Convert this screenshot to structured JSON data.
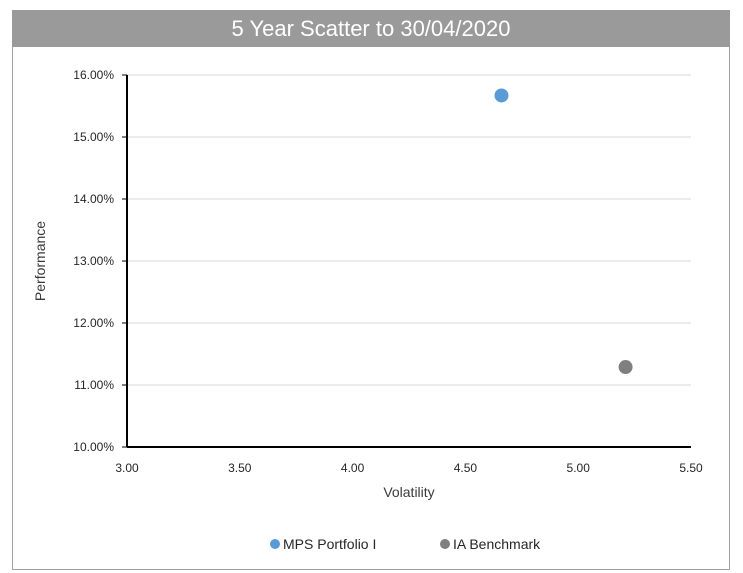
{
  "title": "5 Year Scatter to 30/04/2020",
  "colors": {
    "title_bg": "#9a9a9a",
    "series_1": "#5b9bd5",
    "series_2": "#7f7f7f",
    "grid": "#d9d9d9",
    "axis": "#000000"
  },
  "chart_data": {
    "type": "scatter",
    "title": "5 Year Scatter to 30/04/2020",
    "xlabel": "Volatility",
    "ylabel": "Performance",
    "xlim": [
      3.0,
      5.5
    ],
    "ylim": [
      10.0,
      16.0
    ],
    "x_ticks": [
      3.0,
      3.5,
      4.0,
      4.5,
      5.0,
      5.5
    ],
    "x_tick_labels": [
      "3.00",
      "3.50",
      "4.00",
      "4.50",
      "5.00",
      "5.50"
    ],
    "y_ticks": [
      10,
      11,
      12,
      13,
      14,
      15,
      16
    ],
    "y_tick_labels": [
      "10.00%",
      "11.00%",
      "12.00%",
      "13.00%",
      "14.00%",
      "15.00%",
      "16.00%"
    ],
    "grid": true,
    "legend_position": "bottom",
    "series": [
      {
        "name": "MPS Portfolio I",
        "color": "#5b9bd5",
        "points": [
          {
            "x": 4.66,
            "y": 15.67
          }
        ]
      },
      {
        "name": "IA Benchmark",
        "color": "#7f7f7f",
        "points": [
          {
            "x": 5.21,
            "y": 11.29
          }
        ]
      }
    ]
  }
}
